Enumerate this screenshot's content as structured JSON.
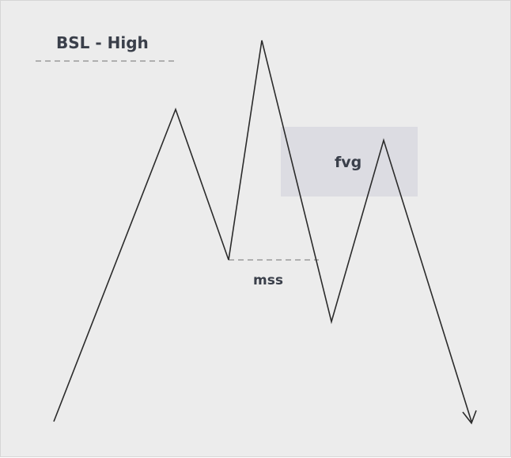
{
  "diagram": {
    "labels": {
      "bsl": "BSL - High",
      "fvg": "fvg",
      "mss": "mss"
    },
    "colors": {
      "background": "#ececec",
      "line": "#2b2b2b",
      "dash": "#8a8a8a",
      "fvg_zone": "#dcdce2",
      "text": "#3a3f4a"
    }
  }
}
